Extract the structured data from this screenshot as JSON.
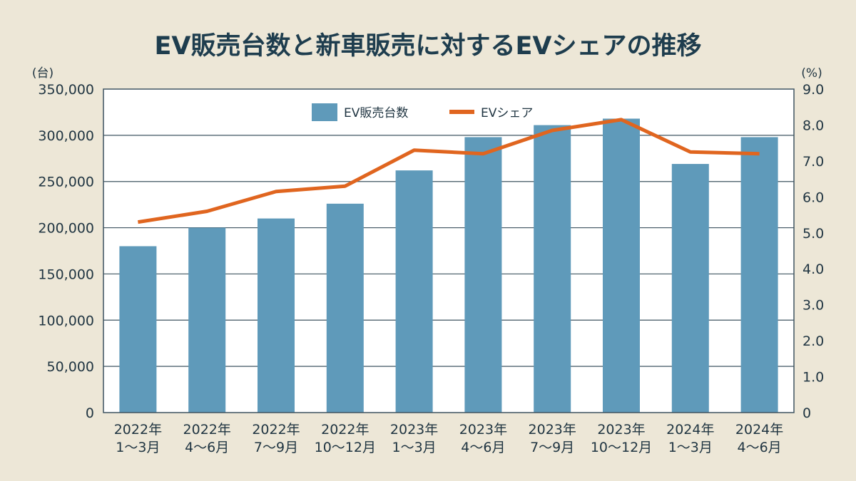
{
  "chart_data": {
    "type": "bar+line",
    "title": "EV販売台数と新車販売に対するEVシェアの推移",
    "categories": [
      [
        "2022年",
        "1〜3月"
      ],
      [
        "2022年",
        "4〜6月"
      ],
      [
        "2022年",
        "7〜9月"
      ],
      [
        "2022年",
        "10〜12月"
      ],
      [
        "2023年",
        "1〜3月"
      ],
      [
        "2023年",
        "4〜6月"
      ],
      [
        "2023年",
        "7〜9月"
      ],
      [
        "2023年",
        "10〜12月"
      ],
      [
        "2024年",
        "1〜3月"
      ],
      [
        "2024年",
        "4〜6月"
      ]
    ],
    "series": [
      {
        "name": "EV販売台数",
        "type": "bar",
        "axis": "left",
        "color": "#5f9aba",
        "values": [
          180000,
          200000,
          210000,
          226000,
          262000,
          298000,
          311000,
          318000,
          269000,
          298000
        ]
      },
      {
        "name": "EVシェア",
        "type": "line",
        "axis": "right",
        "color": "#e0651f",
        "values": [
          5.3,
          5.6,
          6.15,
          6.3,
          7.3,
          7.2,
          7.85,
          8.15,
          7.25,
          7.2
        ]
      }
    ],
    "y_left": {
      "unit": "(台)",
      "ylim": [
        0,
        350000
      ],
      "ticks": [
        "0",
        "50,000",
        "100,000",
        "150,000",
        "200,000",
        "250,000",
        "300,000",
        "350,000"
      ]
    },
    "y_right": {
      "unit": "(%)",
      "ylim": [
        0,
        9
      ],
      "ticks": [
        "0",
        "1.0",
        "2.0",
        "3.0",
        "4.0",
        "5.0",
        "6.0",
        "7.0",
        "8.0",
        "9.0"
      ]
    },
    "grid": true,
    "legend": "top-center"
  }
}
